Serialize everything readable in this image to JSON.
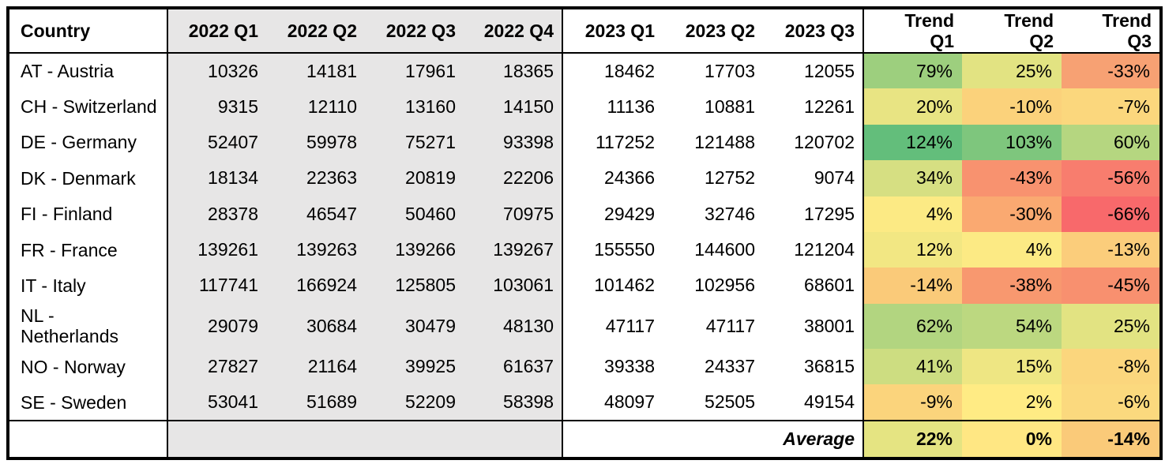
{
  "table": {
    "header": {
      "country": "Country",
      "q2022": [
        "2022 Q1",
        "2022 Q2",
        "2022 Q3",
        "2022 Q4"
      ],
      "q2023": [
        "2023 Q1",
        "2023 Q2",
        "2023 Q3"
      ],
      "trend": [
        "Trend\nQ1",
        "Trend\nQ2",
        "Trend\nQ3"
      ]
    },
    "rows": [
      {
        "country": "AT - Austria",
        "v2022": [
          "10326",
          "14181",
          "17961",
          "18365"
        ],
        "v2023": [
          "18462",
          "17703",
          "12055"
        ],
        "trend": [
          {
            "label": "79%",
            "color": "#9DCF7E"
          },
          {
            "label": "25%",
            "color": "#E2E382"
          },
          {
            "label": "-33%",
            "color": "#F7A173"
          }
        ]
      },
      {
        "country": "CH - Switzerland",
        "v2022": [
          "9315",
          "12110",
          "13160",
          "14150"
        ],
        "v2023": [
          "11136",
          "10881",
          "12261"
        ],
        "trend": [
          {
            "label": "20%",
            "color": "#E8E483"
          },
          {
            "label": "-10%",
            "color": "#FBD27B"
          },
          {
            "label": "-7%",
            "color": "#FBD77D"
          }
        ]
      },
      {
        "country": "DE - Germany",
        "v2022": [
          "52407",
          "59978",
          "75271",
          "93398"
        ],
        "v2023": [
          "117252",
          "121488",
          "120702"
        ],
        "trend": [
          {
            "label": "124%",
            "color": "#63BE7B"
          },
          {
            "label": "103%",
            "color": "#7EC67D"
          },
          {
            "label": "60%",
            "color": "#B5D680"
          }
        ]
      },
      {
        "country": "DK - Denmark",
        "v2022": [
          "18134",
          "22363",
          "20819",
          "22206"
        ],
        "v2023": [
          "24366",
          "12752",
          "9074"
        ],
        "trend": [
          {
            "label": "34%",
            "color": "#D6DF82"
          },
          {
            "label": "-43%",
            "color": "#F8926F"
          },
          {
            "label": "-56%",
            "color": "#F87D6E"
          }
        ]
      },
      {
        "country": "FI - Finland",
        "v2022": [
          "28378",
          "46547",
          "50460",
          "70975"
        ],
        "v2023": [
          "29429",
          "32746",
          "17295"
        ],
        "trend": [
          {
            "label": "4%",
            "color": "#FCEA84"
          },
          {
            "label": "-30%",
            "color": "#FAA971"
          },
          {
            "label": "-66%",
            "color": "#F8696B"
          }
        ]
      },
      {
        "country": "FR - France",
        "v2022": [
          "139261",
          "139263",
          "139266",
          "139267"
        ],
        "v2023": [
          "155550",
          "144600",
          "121204"
        ],
        "trend": [
          {
            "label": "12%",
            "color": "#F2E783"
          },
          {
            "label": "4%",
            "color": "#FCEA84"
          },
          {
            "label": "-13%",
            "color": "#FBCD7B"
          }
        ]
      },
      {
        "country": "IT - Italy",
        "v2022": [
          "117741",
          "166924",
          "125805",
          "103061"
        ],
        "v2023": [
          "101462",
          "102956",
          "68601"
        ],
        "trend": [
          {
            "label": "-14%",
            "color": "#FACA79"
          },
          {
            "label": "-38%",
            "color": "#F8986F"
          },
          {
            "label": "-45%",
            "color": "#F8906F"
          }
        ]
      },
      {
        "country": "NL -\nNetherlands",
        "v2022": [
          "29079",
          "30684",
          "30479",
          "48130"
        ],
        "v2023": [
          "47117",
          "47117",
          "38001"
        ],
        "trend": [
          {
            "label": "62%",
            "color": "#B2D580"
          },
          {
            "label": "54%",
            "color": "#BCD880"
          },
          {
            "label": "25%",
            "color": "#E2E382"
          }
        ]
      },
      {
        "country": "NO - Norway",
        "v2022": [
          "27827",
          "21164",
          "39925",
          "61637"
        ],
        "v2023": [
          "39338",
          "24337",
          "36815"
        ],
        "trend": [
          {
            "label": "41%",
            "color": "#CDDD81"
          },
          {
            "label": "15%",
            "color": "#EEE683"
          },
          {
            "label": "-8%",
            "color": "#FBD67D"
          }
        ]
      },
      {
        "country": "SE - Sweden",
        "v2022": [
          "53041",
          "51689",
          "52209",
          "58398"
        ],
        "v2023": [
          "48097",
          "52505",
          "49154"
        ],
        "trend": [
          {
            "label": "-9%",
            "color": "#FBD47C"
          },
          {
            "label": "2%",
            "color": "#FFEB84"
          },
          {
            "label": "-6%",
            "color": "#FBD97E"
          }
        ]
      }
    ],
    "footer": {
      "label": "Average",
      "trend": [
        {
          "label": "22%",
          "color": "#E5E482"
        },
        {
          "label": "0%",
          "color": "#FFE783"
        },
        {
          "label": "-14%",
          "color": "#FACA79"
        }
      ]
    }
  },
  "colors": {
    "block_2022_bg": "#E7E6E6",
    "border": "#000000",
    "text": "#000000",
    "scale_min_red": "#F8696B",
    "scale_mid_yellow": "#FFEB84",
    "scale_max_green": "#63BE7B"
  }
}
